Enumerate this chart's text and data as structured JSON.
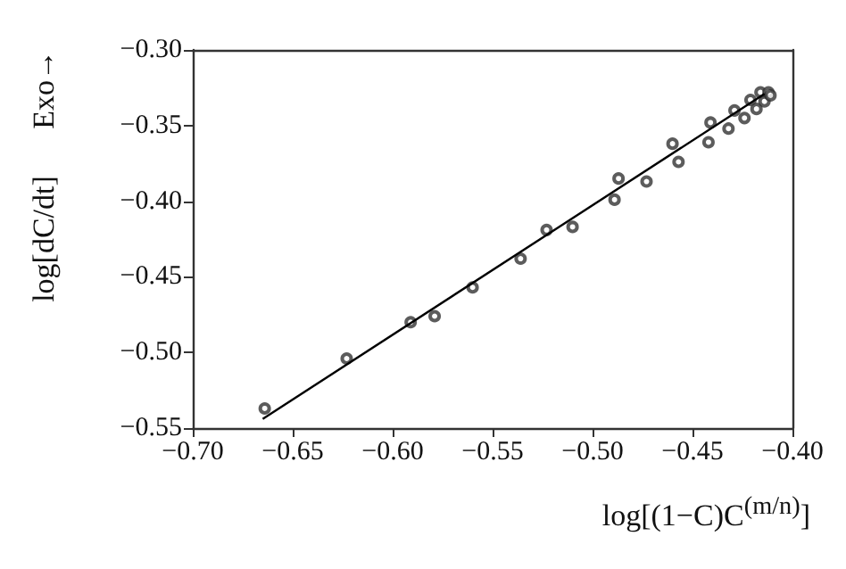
{
  "chart_data": {
    "type": "scatter",
    "xlabel": "log[(1−C)C$^{(m/n)}$]",
    "ylabel": "log[dC/dt]",
    "annotations": [
      "Exo→"
    ],
    "xlim": [
      -0.7,
      -0.4
    ],
    "xticks": [
      {
        "value": -0.7,
        "label": "−0.70"
      },
      {
        "value": -0.65,
        "label": "−0.65"
      },
      {
        "value": -0.6,
        "label": "−0.60"
      },
      {
        "value": -0.55,
        "label": "−0.55"
      },
      {
        "value": -0.5,
        "label": "−0.50"
      },
      {
        "value": -0.45,
        "label": "−0.45"
      },
      {
        "value": -0.4,
        "label": "−0.40"
      }
    ],
    "ylim": [
      -0.55,
      -0.3
    ],
    "yticks": [
      {
        "value": -0.55,
        "label": "−0.55"
      },
      {
        "value": -0.5,
        "label": "−0.50"
      },
      {
        "value": -0.45,
        "label": "−0.45"
      },
      {
        "value": -0.4,
        "label": "−0.40"
      },
      {
        "value": -0.35,
        "label": "−0.35"
      },
      {
        "value": -0.3,
        "label": "−0.30"
      }
    ],
    "grid": false,
    "marker": "circle",
    "series": [
      {
        "color": "#333333",
        "x": [
          -0.664,
          -0.623,
          -0.591,
          -0.579,
          -0.56,
          -0.536,
          -0.523,
          -0.51,
          -0.489,
          -0.487,
          -0.473,
          -0.46,
          -0.457,
          -0.442,
          -0.441,
          -0.432,
          -0.429,
          -0.424,
          -0.421,
          -0.418,
          -0.416,
          -0.414,
          -0.412,
          -0.411
        ],
        "values": [
          -0.537,
          -0.504,
          -0.48,
          -0.476,
          -0.457,
          -0.438,
          -0.419,
          -0.417,
          -0.399,
          -0.385,
          -0.387,
          -0.362,
          -0.374,
          -0.361,
          -0.348,
          -0.352,
          -0.34,
          -0.345,
          -0.333,
          -0.339,
          -0.328,
          -0.334,
          -0.328,
          -0.33
        ]
      },
      {
        "type": "line",
        "color": "#000000",
        "marker": "none",
        "line_style": "solid",
        "x": [
          -0.665,
          -0.414
        ],
        "values": [
          -0.544,
          -0.329
        ]
      }
    ]
  }
}
